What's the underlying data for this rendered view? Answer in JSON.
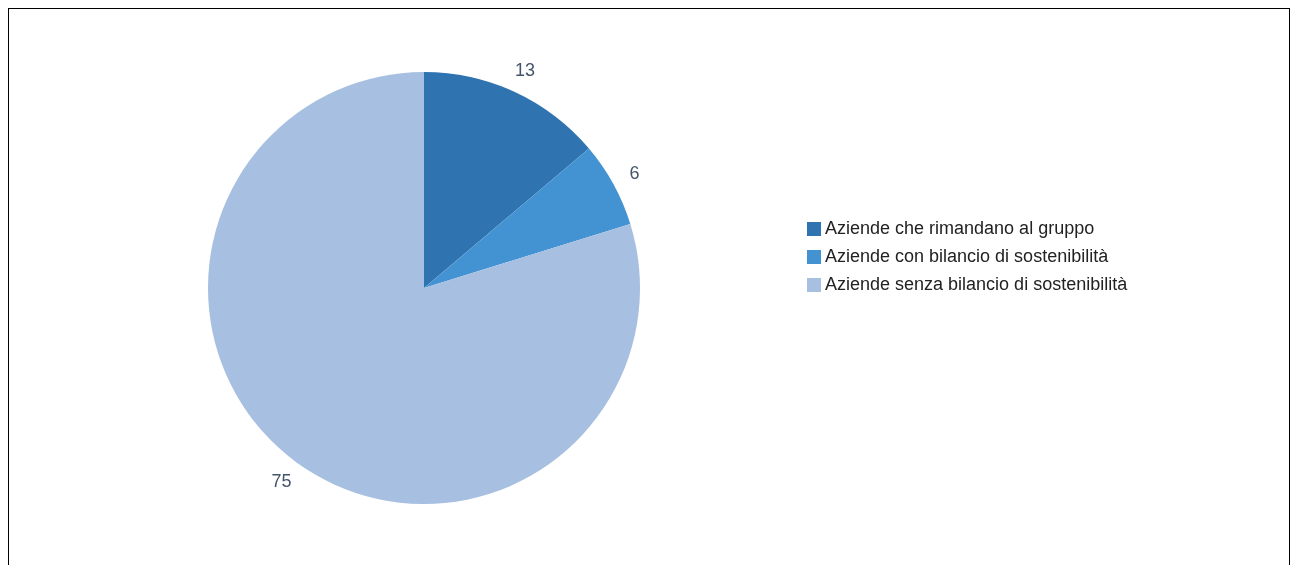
{
  "chart_data": {
    "type": "pie",
    "categories": [
      "Aziende che rimandano al gruppo",
      "Aziende con bilancio di sostenibilità",
      "Aziende senza bilancio di sostenibilità"
    ],
    "values": [
      13,
      6,
      75
    ],
    "colors": [
      "#2f74b0",
      "#4393d3",
      "#a7bfe0"
    ],
    "data_labels": true,
    "legend": "right"
  }
}
